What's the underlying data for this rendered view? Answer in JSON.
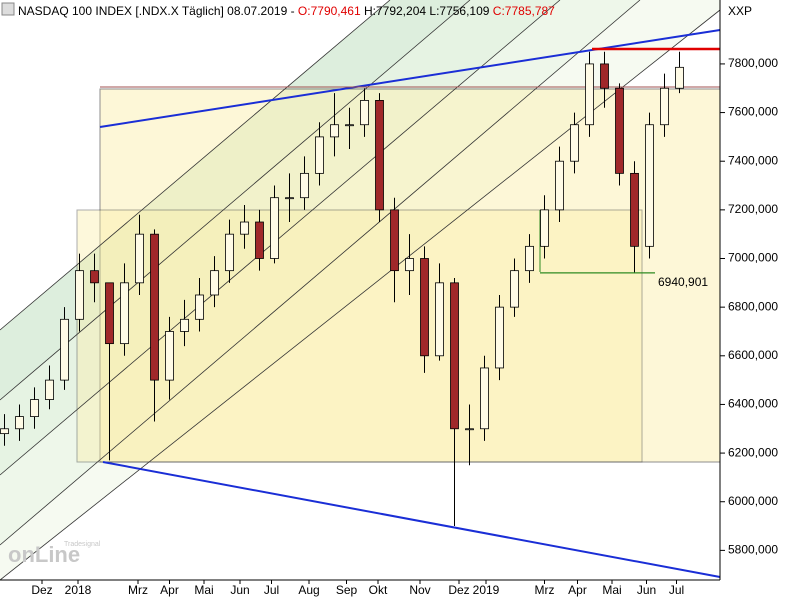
{
  "header": {
    "title": "NASDAQ 100 INDEX [.NDX.X  Täglich] 08.07.2019 -",
    "open": "O:7790,461",
    "high": "H:7792,204",
    "low": "L:7756,109",
    "close": "C:7785,787"
  },
  "watermark": {
    "brand": "onLine",
    "sub": "Tradesignal"
  },
  "chart_data": {
    "type": "candlestick",
    "y_axis_label": "XXP",
    "open": [
      6280,
      6300,
      6350,
      6420,
      6500,
      6750,
      6950,
      6900,
      6650,
      6900,
      7100,
      6500,
      6700,
      6750,
      6850,
      6950,
      7100,
      7150,
      7000,
      7250,
      7250,
      7350,
      7500,
      7550,
      7550,
      7650,
      7200,
      6950,
      7000,
      6600,
      6900,
      6300,
      6300,
      6550,
      6800,
      6950,
      7050,
      7200,
      7400,
      7550,
      7800,
      7700,
      7350,
      7050,
      7550,
      7700
    ],
    "high": [
      6360,
      6400,
      6470,
      6560,
      6800,
      7020,
      7020,
      6900,
      6980,
      7180,
      7120,
      6760,
      6830,
      6920,
      7010,
      7160,
      7220,
      7200,
      7300,
      7350,
      7420,
      7560,
      7680,
      7620,
      7700,
      7680,
      7250,
      7100,
      7050,
      6980,
      6920,
      6400,
      6600,
      6850,
      7000,
      7100,
      7260,
      7460,
      7600,
      7850,
      7850,
      7720,
      7400,
      7600,
      7760,
      7850
    ],
    "low": [
      6230,
      6250,
      6300,
      6380,
      6460,
      6700,
      6820,
      6170,
      6600,
      6850,
      6330,
      6420,
      6640,
      6700,
      6800,
      6900,
      7040,
      6950,
      6980,
      7150,
      7200,
      7300,
      7420,
      7450,
      7500,
      7150,
      6820,
      6850,
      6530,
      6580,
      5900,
      6150,
      6250,
      6500,
      6760,
      6900,
      7000,
      7150,
      7350,
      7500,
      7620,
      7300,
      6940,
      7000,
      7500,
      7680
    ],
    "close": [
      6300,
      6350,
      6420,
      6500,
      6750,
      6950,
      6900,
      6650,
      6900,
      7100,
      6500,
      6700,
      6750,
      6850,
      6950,
      7100,
      7150,
      7000,
      7250,
      7250,
      7350,
      7500,
      7550,
      7550,
      7650,
      7200,
      6950,
      7000,
      6600,
      6900,
      6300,
      6300,
      6550,
      6800,
      6950,
      7050,
      7200,
      7400,
      7550,
      7800,
      7700,
      7350,
      7050,
      7550,
      7700,
      7786
    ],
    "up_color": "#fffbe6",
    "down_color": "#a0282a",
    "xlim": [
      -0.3,
      47.7
    ],
    "xticks": [
      {
        "value": 2.5,
        "label": "Dez"
      },
      {
        "value": 4.9,
        "label": "2018"
      },
      {
        "value": 8.9,
        "label": "Mrz"
      },
      {
        "value": 11,
        "label": "Apr"
      },
      {
        "value": 13.3,
        "label": "Mai"
      },
      {
        "value": 15.7,
        "label": "Jun"
      },
      {
        "value": 17.8,
        "label": "Jul"
      },
      {
        "value": 20.3,
        "label": "Aug"
      },
      {
        "value": 22.8,
        "label": "Sep"
      },
      {
        "value": 24.9,
        "label": "Okt"
      },
      {
        "value": 27.7,
        "label": "Nov"
      },
      {
        "value": 30.3,
        "label": "Dez"
      },
      {
        "value": 32.1,
        "label": "2019"
      },
      {
        "value": 36,
        "label": "Mrz"
      },
      {
        "value": 38.2,
        "label": "Apr"
      },
      {
        "value": 40.5,
        "label": "Mai"
      },
      {
        "value": 42.8,
        "label": "Jun"
      },
      {
        "value": 44.8,
        "label": "Jul"
      }
    ],
    "ylim": [
      5678.2,
      8062.8
    ],
    "yticks": [
      {
        "value": 5800,
        "label": "5800,000"
      },
      {
        "value": 6000,
        "label": "6000,000"
      },
      {
        "value": 6200,
        "label": "6200,000"
      },
      {
        "value": 6400,
        "label": "6400,000"
      },
      {
        "value": 6600,
        "label": "6600,000"
      },
      {
        "value": 6800,
        "label": "6800,000"
      },
      {
        "value": 7000,
        "label": "7000,000"
      },
      {
        "value": 7200,
        "label": "7200,000"
      },
      {
        "value": 7400,
        "label": "7400,000"
      },
      {
        "value": 7600,
        "label": "7600,000"
      },
      {
        "value": 7800,
        "label": "7800,000"
      }
    ],
    "annotation": {
      "value": 6940.901,
      "label": "6940,901",
      "color": "#2e8b22"
    }
  }
}
